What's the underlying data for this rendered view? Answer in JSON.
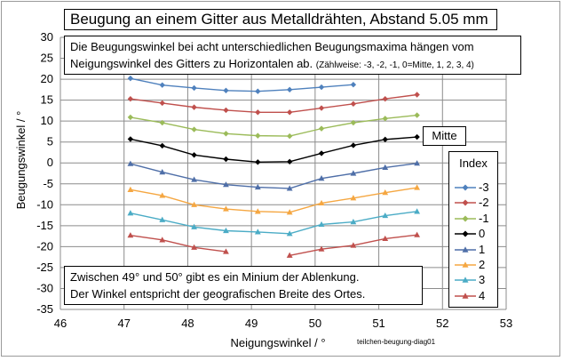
{
  "chart_data": {
    "type": "line",
    "title": "Beugung an einem Gitter aus Metalldrähten, Abstand  5.05 mm",
    "description_line1": "Die Beugungswinkel bei acht unterschiedlichen Beugungsmaxima hängen vom",
    "description_line2": "Neigungswinkel des Gitters zu Horizontalen ab.",
    "description_note": "(Zählweise: -3, -2, -1, 0=Mitte, 1, 2, 3, 4)",
    "annotation_line1": "Zwischen 49° und 50° gibt es ein Minium der Ablenkung.",
    "annotation_line2": "Der Winkel entspricht der geografischen Breite des Ortes.",
    "mitte_label": "Mitte",
    "legend_title": "Index",
    "xlabel": "Neigungswinkel / °",
    "ylabel": "Beugungswinkel / °",
    "footer": "teilchen-beugung-diag01",
    "xlim": [
      46,
      53
    ],
    "ylim": [
      -35,
      30
    ],
    "xticks": [
      46,
      47,
      48,
      49,
      50,
      51,
      52,
      53
    ],
    "yticks": [
      30,
      25,
      20,
      15,
      10,
      5,
      0,
      -5,
      -10,
      -15,
      -20,
      -25,
      -30,
      -35
    ],
    "grid": true,
    "series": [
      {
        "name": "-3",
        "color": "#4f81bd",
        "marker": "diamond",
        "points": [
          [
            47.1,
            20.2
          ],
          [
            47.6,
            18.6
          ],
          [
            48.1,
            17.9
          ],
          [
            48.6,
            17.3
          ],
          [
            49.1,
            17.1
          ],
          [
            49.6,
            17.5
          ],
          [
            50.1,
            18.1
          ],
          [
            50.6,
            18.7
          ]
        ]
      },
      {
        "name": "-2",
        "color": "#c0504d",
        "marker": "diamond",
        "points": [
          [
            47.1,
            15.3
          ],
          [
            47.6,
            14.3
          ],
          [
            48.1,
            13.3
          ],
          [
            48.6,
            12.6
          ],
          [
            49.1,
            12.1
          ],
          [
            49.6,
            12.1
          ],
          [
            50.1,
            13.1
          ],
          [
            50.6,
            14.1
          ],
          [
            51.1,
            15.3
          ],
          [
            51.6,
            16.3
          ]
        ]
      },
      {
        "name": "-1",
        "color": "#9bbb59",
        "marker": "diamond",
        "points": [
          [
            47.1,
            10.9
          ],
          [
            47.6,
            9.6
          ],
          [
            48.1,
            8.0
          ],
          [
            48.6,
            7.0
          ],
          [
            49.1,
            6.5
          ],
          [
            49.6,
            6.4
          ],
          [
            50.1,
            8.2
          ],
          [
            50.6,
            9.6
          ],
          [
            51.1,
            10.6
          ],
          [
            51.6,
            11.4
          ]
        ]
      },
      {
        "name": "0",
        "color": "#000000",
        "marker": "diamond",
        "points": [
          [
            47.1,
            5.7
          ],
          [
            47.6,
            4.1
          ],
          [
            48.1,
            1.9
          ],
          [
            48.6,
            0.9
          ],
          [
            49.1,
            0.2
          ],
          [
            49.6,
            0.3
          ],
          [
            50.1,
            2.3
          ],
          [
            50.6,
            4.2
          ],
          [
            51.1,
            5.6
          ],
          [
            51.6,
            6.2
          ]
        ]
      },
      {
        "name": "1",
        "color": "#4f6fa8",
        "marker": "triangle",
        "points": [
          [
            47.1,
            -0.2
          ],
          [
            47.6,
            -2.2
          ],
          [
            48.1,
            -4.0
          ],
          [
            48.6,
            -5.2
          ],
          [
            49.1,
            -5.8
          ],
          [
            49.6,
            -6.1
          ],
          [
            50.1,
            -3.7
          ],
          [
            50.6,
            -2.5
          ],
          [
            51.1,
            -1.1
          ],
          [
            51.6,
            -0.1
          ]
        ]
      },
      {
        "name": "2",
        "color": "#f5a742",
        "marker": "triangle",
        "points": [
          [
            47.1,
            -6.4
          ],
          [
            47.6,
            -7.8
          ],
          [
            48.1,
            -10.0
          ],
          [
            48.6,
            -11.0
          ],
          [
            49.1,
            -11.6
          ],
          [
            49.6,
            -11.8
          ],
          [
            50.1,
            -9.6
          ],
          [
            50.6,
            -8.4
          ],
          [
            51.1,
            -7.1
          ],
          [
            51.6,
            -5.9
          ]
        ]
      },
      {
        "name": "3",
        "color": "#4bacc6",
        "marker": "triangle",
        "points": [
          [
            47.1,
            -12.0
          ],
          [
            47.6,
            -13.6
          ],
          [
            48.1,
            -15.3
          ],
          [
            48.6,
            -16.2
          ],
          [
            49.1,
            -16.5
          ],
          [
            49.6,
            -16.9
          ],
          [
            50.1,
            -14.7
          ],
          [
            50.6,
            -14.1
          ],
          [
            51.1,
            -12.6
          ],
          [
            51.6,
            -11.6
          ]
        ]
      },
      {
        "name": "4",
        "color": "#c0504d",
        "marker": "triangle",
        "segments": [
          [
            [
              47.1,
              -17.3
            ],
            [
              47.6,
              -18.4
            ],
            [
              48.1,
              -20.2
            ],
            [
              48.6,
              -21.2
            ]
          ],
          [
            [
              49.6,
              -22.1
            ],
            [
              50.1,
              -20.6
            ],
            [
              50.6,
              -19.7
            ],
            [
              51.1,
              -18.1
            ],
            [
              51.6,
              -17.2
            ]
          ]
        ]
      }
    ]
  }
}
